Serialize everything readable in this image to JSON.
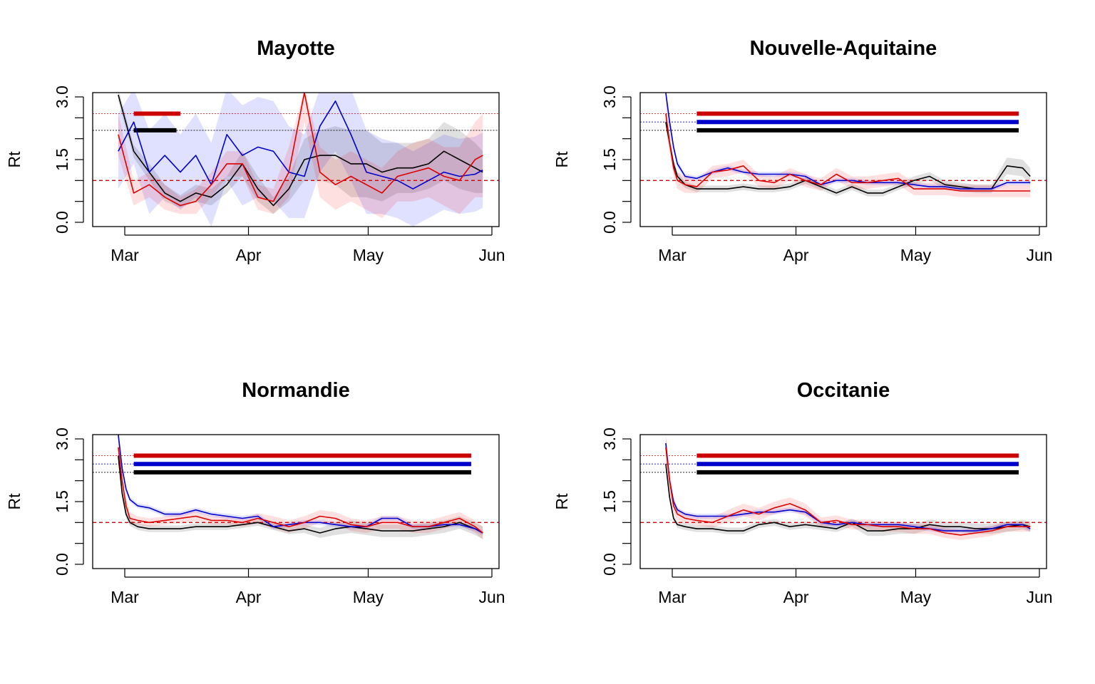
{
  "chart_data": [
    {
      "type": "line",
      "title": "Mayotte",
      "ylabel": "Rt",
      "ylim": [
        0,
        3
      ],
      "yticks": [
        "0.0",
        "1.5",
        "3.0"
      ],
      "xticks": [
        "Mar",
        "Apr",
        "May",
        "Jun"
      ],
      "reference_line": 1.0,
      "x": [
        0,
        4,
        8,
        12,
        16,
        20,
        24,
        28,
        32,
        36,
        40,
        44,
        48,
        52,
        56,
        60,
        64,
        68,
        72,
        76,
        80,
        84,
        88,
        92,
        94
      ],
      "series": [
        {
          "color": "#000000",
          "values": [
            3.05,
            1.7,
            1.2,
            0.7,
            0.5,
            0.7,
            0.6,
            0.9,
            1.4,
            0.8,
            0.4,
            0.8,
            1.5,
            1.6,
            1.6,
            1.4,
            1.4,
            1.2,
            1.3,
            1.3,
            1.4,
            1.7,
            1.5,
            1.3,
            1.2
          ]
        },
        {
          "color": "#0000cc",
          "values": [
            1.7,
            2.4,
            1.2,
            1.6,
            1.2,
            1.6,
            0.9,
            2.1,
            1.6,
            1.8,
            1.7,
            1.2,
            1.1,
            2.3,
            2.9,
            2.1,
            1.2,
            1.1,
            1.0,
            0.8,
            1.0,
            1.2,
            1.1,
            1.15,
            1.25
          ]
        },
        {
          "color": "#dd0000",
          "values": [
            2.1,
            0.7,
            0.9,
            0.6,
            0.4,
            0.5,
            0.9,
            1.4,
            1.4,
            0.6,
            0.5,
            1.2,
            3.1,
            1.2,
            0.9,
            1.1,
            0.9,
            0.7,
            1.1,
            1.2,
            1.3,
            1.1,
            1.0,
            1.5,
            1.6
          ]
        }
      ],
      "bands": [
        {
          "color": "#000000",
          "width": [
            0.15,
            0.15,
            0.2,
            0.2,
            0.15,
            0.2,
            0.2,
            0.2,
            0.3,
            0.3,
            0.2,
            0.3,
            0.5,
            0.6,
            0.7,
            0.8,
            0.8,
            0.7,
            0.6,
            0.6,
            0.6,
            0.7,
            0.7,
            0.6,
            0.5
          ]
        },
        {
          "color": "#0000ff",
          "width": [
            0.9,
            1.0,
            1.0,
            1.0,
            0.9,
            1.0,
            1.0,
            1.1,
            1.2,
            1.2,
            1.2,
            1.1,
            1.0,
            1.1,
            1.2,
            1.1,
            1.0,
            0.9,
            0.9,
            0.9,
            0.9,
            0.9,
            0.9,
            0.9,
            0.9
          ]
        },
        {
          "color": "#ff0000",
          "width": [
            0.5,
            0.3,
            0.3,
            0.3,
            0.2,
            0.3,
            0.3,
            0.3,
            0.3,
            0.3,
            0.3,
            0.6,
            0.7,
            0.6,
            0.6,
            0.6,
            0.6,
            0.6,
            0.6,
            0.7,
            0.7,
            0.7,
            0.8,
            0.9,
            1.0
          ]
        }
      ],
      "segments": [
        {
          "color": "#cc0000",
          "y": 2.6,
          "from": 4,
          "to": 18
        },
        {
          "color": "#000000",
          "y": 2.2,
          "from": 4,
          "to": 17
        }
      ]
    },
    {
      "type": "line",
      "title": "Nouvelle-Aquitaine",
      "ylabel": "Rt",
      "ylim": [
        0,
        3
      ],
      "yticks": [
        "0.0",
        "1.5",
        "3.0"
      ],
      "xticks": [
        "Mar",
        "Apr",
        "May",
        "Jun"
      ],
      "reference_line": 1.0,
      "x": [
        0,
        1,
        2,
        3,
        5,
        8,
        12,
        16,
        20,
        24,
        28,
        32,
        36,
        40,
        44,
        48,
        52,
        56,
        60,
        64,
        68,
        72,
        76,
        80,
        84,
        88,
        92,
        94
      ],
      "series": [
        {
          "color": "#000000",
          "values": [
            2.4,
            1.9,
            1.4,
            1.1,
            0.9,
            0.8,
            0.8,
            0.8,
            0.85,
            0.8,
            0.8,
            0.85,
            1.0,
            0.85,
            0.7,
            0.85,
            0.7,
            0.7,
            0.85,
            1.0,
            1.1,
            0.9,
            0.85,
            0.8,
            0.8,
            1.35,
            1.3,
            1.1
          ]
        },
        {
          "color": "#0000cc",
          "values": [
            3.1,
            2.4,
            1.8,
            1.4,
            1.1,
            1.05,
            1.2,
            1.3,
            1.2,
            1.15,
            1.15,
            1.15,
            1.1,
            0.9,
            1.0,
            1.0,
            0.95,
            0.95,
            0.95,
            0.9,
            0.85,
            0.85,
            0.8,
            0.8,
            0.8,
            0.95,
            0.95,
            0.95
          ]
        },
        {
          "color": "#dd0000",
          "values": [
            2.6,
            1.9,
            1.3,
            1.0,
            0.9,
            0.85,
            1.2,
            1.25,
            1.35,
            1.0,
            0.95,
            1.15,
            1.0,
            0.9,
            1.15,
            0.95,
            0.95,
            1.0,
            1.05,
            0.8,
            0.8,
            0.8,
            0.75,
            0.75,
            0.75,
            0.75,
            0.75,
            0.75
          ]
        }
      ],
      "bands": [
        {
          "color": "#000000",
          "width": [
            0.2,
            0.15,
            0.1,
            0.1,
            0.08,
            0.08,
            0.08,
            0.08,
            0.08,
            0.08,
            0.08,
            0.08,
            0.08,
            0.08,
            0.08,
            0.08,
            0.08,
            0.08,
            0.08,
            0.1,
            0.1,
            0.1,
            0.1,
            0.1,
            0.1,
            0.2,
            0.2,
            0.2
          ]
        },
        {
          "color": "#0000ff",
          "width": [
            0.2,
            0.15,
            0.1,
            0.08,
            0.06,
            0.06,
            0.06,
            0.06,
            0.06,
            0.06,
            0.06,
            0.06,
            0.06,
            0.06,
            0.06,
            0.06,
            0.06,
            0.06,
            0.06,
            0.06,
            0.06,
            0.06,
            0.06,
            0.06,
            0.06,
            0.06,
            0.06,
            0.06
          ]
        },
        {
          "color": "#ff0000",
          "width": [
            0.3,
            0.25,
            0.2,
            0.2,
            0.2,
            0.15,
            0.15,
            0.15,
            0.15,
            0.15,
            0.15,
            0.15,
            0.15,
            0.15,
            0.15,
            0.15,
            0.15,
            0.15,
            0.15,
            0.15,
            0.15,
            0.15,
            0.15,
            0.15,
            0.15,
            0.15,
            0.15,
            0.15
          ]
        }
      ],
      "segments": [
        {
          "color": "#cc0000",
          "y": 2.6,
          "from": 8,
          "to": 93
        },
        {
          "color": "#0000cc",
          "y": 2.4,
          "from": 8,
          "to": 93
        },
        {
          "color": "#000000",
          "y": 2.2,
          "from": 8,
          "to": 93
        }
      ]
    },
    {
      "type": "line",
      "title": "Normandie",
      "ylabel": "Rt",
      "ylim": [
        0,
        3
      ],
      "yticks": [
        "0.0",
        "1.5",
        "3.0"
      ],
      "xticks": [
        "Mar",
        "Apr",
        "May",
        "Jun"
      ],
      "reference_line": 1.0,
      "x": [
        0,
        1,
        2,
        3,
        5,
        8,
        12,
        16,
        20,
        24,
        28,
        32,
        36,
        40,
        44,
        48,
        52,
        56,
        60,
        64,
        68,
        72,
        76,
        80,
        84,
        88,
        92,
        94
      ],
      "series": [
        {
          "color": "#000000",
          "values": [
            2.6,
            1.7,
            1.2,
            1.0,
            0.9,
            0.85,
            0.85,
            0.85,
            0.9,
            0.9,
            0.9,
            0.95,
            1.0,
            0.9,
            0.8,
            0.85,
            0.75,
            0.85,
            0.9,
            0.85,
            0.8,
            0.8,
            0.8,
            0.85,
            0.9,
            1.0,
            0.85,
            0.75
          ]
        },
        {
          "color": "#0000cc",
          "values": [
            3.1,
            2.3,
            1.8,
            1.55,
            1.4,
            1.35,
            1.2,
            1.2,
            1.3,
            1.2,
            1.15,
            1.1,
            1.15,
            0.9,
            0.95,
            1.0,
            1.0,
            0.95,
            0.9,
            0.9,
            1.1,
            1.1,
            0.9,
            0.9,
            0.95,
            0.95,
            0.85,
            0.75
          ]
        },
        {
          "color": "#dd0000",
          "values": [
            2.8,
            2.0,
            1.4,
            1.1,
            1.05,
            1.0,
            1.05,
            1.1,
            1.15,
            1.05,
            1.05,
            1.0,
            1.1,
            1.0,
            0.9,
            1.0,
            1.15,
            1.1,
            0.95,
            0.9,
            1.0,
            1.0,
            0.9,
            0.9,
            1.0,
            1.1,
            0.9,
            0.75
          ]
        }
      ],
      "bands": [
        {
          "color": "#000000",
          "width": [
            0.2,
            0.15,
            0.1,
            0.08,
            0.08,
            0.08,
            0.08,
            0.08,
            0.08,
            0.08,
            0.08,
            0.08,
            0.08,
            0.08,
            0.08,
            0.1,
            0.12,
            0.15,
            0.15,
            0.15,
            0.15,
            0.15,
            0.15,
            0.15,
            0.15,
            0.15,
            0.15,
            0.15
          ]
        },
        {
          "color": "#0000ff",
          "width": [
            0.15,
            0.1,
            0.08,
            0.06,
            0.06,
            0.06,
            0.06,
            0.06,
            0.06,
            0.06,
            0.06,
            0.06,
            0.06,
            0.06,
            0.06,
            0.06,
            0.06,
            0.06,
            0.06,
            0.06,
            0.06,
            0.06,
            0.06,
            0.06,
            0.06,
            0.06,
            0.06,
            0.06
          ]
        },
        {
          "color": "#ff0000",
          "width": [
            0.3,
            0.25,
            0.2,
            0.15,
            0.1,
            0.1,
            0.1,
            0.12,
            0.12,
            0.1,
            0.1,
            0.1,
            0.12,
            0.15,
            0.15,
            0.15,
            0.15,
            0.15,
            0.15,
            0.15,
            0.15,
            0.15,
            0.15,
            0.15,
            0.15,
            0.15,
            0.15,
            0.15
          ]
        }
      ],
      "segments": [
        {
          "color": "#cc0000",
          "y": 2.6,
          "from": 4,
          "to": 93
        },
        {
          "color": "#0000cc",
          "y": 2.4,
          "from": 4,
          "to": 93
        },
        {
          "color": "#000000",
          "y": 2.2,
          "from": 4,
          "to": 93
        }
      ]
    },
    {
      "type": "line",
      "title": "Occitanie",
      "ylabel": "Rt",
      "ylim": [
        0,
        3
      ],
      "yticks": [
        "0.0",
        "1.5",
        "3.0"
      ],
      "xticks": [
        "Mar",
        "Apr",
        "May",
        "Jun"
      ],
      "reference_line": 1.0,
      "x": [
        0,
        1,
        2,
        3,
        5,
        8,
        12,
        16,
        20,
        24,
        28,
        32,
        36,
        40,
        44,
        48,
        52,
        56,
        60,
        64,
        68,
        72,
        76,
        80,
        84,
        88,
        92,
        94
      ],
      "series": [
        {
          "color": "#000000",
          "values": [
            2.4,
            1.6,
            1.1,
            0.95,
            0.9,
            0.85,
            0.85,
            0.8,
            0.8,
            0.95,
            1.0,
            0.9,
            0.95,
            0.9,
            0.85,
            1.0,
            0.8,
            0.8,
            0.85,
            0.85,
            0.95,
            0.9,
            0.9,
            0.85,
            0.85,
            0.9,
            0.95,
            0.9
          ]
        },
        {
          "color": "#0000cc",
          "values": [
            2.9,
            2.0,
            1.5,
            1.3,
            1.2,
            1.15,
            1.15,
            1.15,
            1.2,
            1.25,
            1.25,
            1.3,
            1.25,
            1.0,
            0.95,
            1.0,
            0.95,
            0.95,
            0.95,
            0.9,
            0.85,
            0.8,
            0.8,
            0.8,
            0.85,
            0.95,
            0.95,
            0.85
          ]
        },
        {
          "color": "#dd0000",
          "values": [
            2.8,
            2.0,
            1.4,
            1.2,
            1.1,
            1.05,
            1.0,
            1.15,
            1.3,
            1.2,
            1.35,
            1.45,
            1.3,
            1.0,
            1.05,
            0.95,
            0.95,
            0.9,
            0.9,
            0.85,
            0.85,
            0.75,
            0.7,
            0.75,
            0.8,
            0.9,
            0.9,
            0.9
          ]
        }
      ],
      "bands": [
        {
          "color": "#000000",
          "width": [
            0.15,
            0.1,
            0.08,
            0.08,
            0.08,
            0.08,
            0.08,
            0.08,
            0.08,
            0.08,
            0.08,
            0.08,
            0.08,
            0.08,
            0.08,
            0.1,
            0.12,
            0.12,
            0.12,
            0.12,
            0.12,
            0.12,
            0.12,
            0.12,
            0.12,
            0.12,
            0.12,
            0.12
          ]
        },
        {
          "color": "#0000ff",
          "width": [
            0.15,
            0.1,
            0.08,
            0.06,
            0.06,
            0.06,
            0.06,
            0.06,
            0.06,
            0.06,
            0.06,
            0.06,
            0.06,
            0.06,
            0.06,
            0.06,
            0.06,
            0.06,
            0.06,
            0.06,
            0.06,
            0.06,
            0.06,
            0.06,
            0.06,
            0.06,
            0.06,
            0.06
          ]
        },
        {
          "color": "#ff0000",
          "width": [
            0.3,
            0.25,
            0.2,
            0.15,
            0.12,
            0.12,
            0.12,
            0.15,
            0.15,
            0.15,
            0.15,
            0.15,
            0.15,
            0.12,
            0.12,
            0.12,
            0.12,
            0.12,
            0.12,
            0.12,
            0.12,
            0.12,
            0.12,
            0.12,
            0.12,
            0.12,
            0.12,
            0.12
          ]
        }
      ],
      "segments": [
        {
          "color": "#cc0000",
          "y": 2.6,
          "from": 8,
          "to": 93
        },
        {
          "color": "#0000cc",
          "y": 2.4,
          "from": 8,
          "to": 93
        },
        {
          "color": "#000000",
          "y": 2.2,
          "from": 8,
          "to": 93
        }
      ]
    }
  ]
}
